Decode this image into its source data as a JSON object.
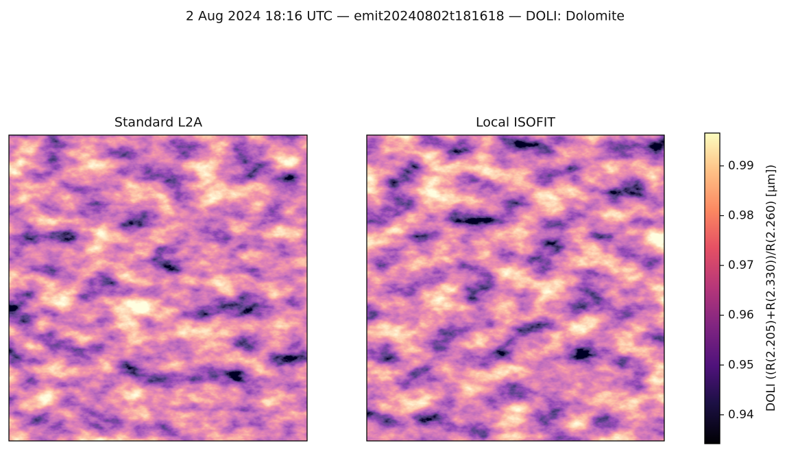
{
  "chart_data": {
    "type": "image",
    "title": "2 Aug 2024 18:16 UTC — emit20240802t181618 — DOLI: Dolomite",
    "panels": [
      {
        "title": "Standard L2A"
      },
      {
        "title": "Local ISOFIT"
      }
    ],
    "colorbar": {
      "label": "DOLI  ((R(2.205)+R(2.330))/R(2.260)  [µm])",
      "colormap": "magma",
      "ylim": [
        0.9342,
        0.9966
      ],
      "yticks": [
        0.94,
        0.95,
        0.96,
        0.97,
        0.98,
        0.99
      ]
    }
  }
}
